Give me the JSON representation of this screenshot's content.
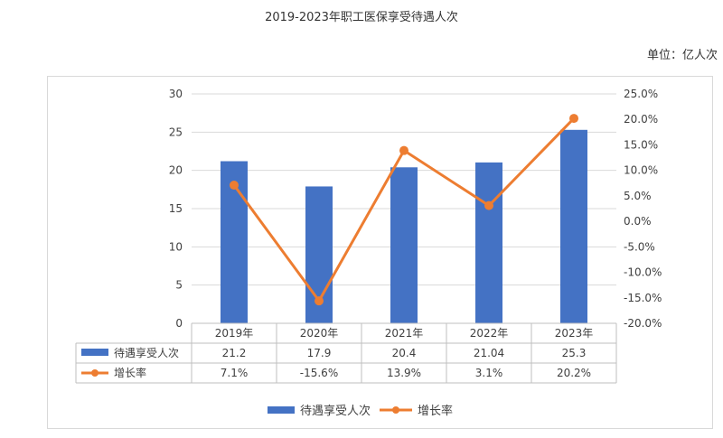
{
  "title": "2019-2023年职工医保享受待遇人次",
  "unit_label": "单位：亿人次",
  "chart_data": {
    "type": "bar",
    "title": "2019-2023年职工医保享受待遇人次",
    "categories": [
      "2019年",
      "2020年",
      "2021年",
      "2022年",
      "2023年"
    ],
    "series": [
      {
        "name": "待遇享受人次",
        "type": "bar",
        "axis": "left",
        "values": [
          21.2,
          17.9,
          20.4,
          21.04,
          25.3
        ],
        "labels": [
          "21.2",
          "17.9",
          "20.4",
          "21.04",
          "25.3"
        ],
        "color": "#4472c4"
      },
      {
        "name": "增长率",
        "type": "line",
        "axis": "right",
        "values": [
          7.1,
          -15.6,
          13.9,
          3.1,
          20.2
        ],
        "labels": [
          "7.1%",
          "-15.6%",
          "13.9%",
          "3.1%",
          "20.2%"
        ],
        "color": "#ed7d31"
      }
    ],
    "y_left": {
      "min": 0,
      "max": 30,
      "ticks": [
        "30",
        "25",
        "20",
        "15",
        "10",
        "5",
        "0"
      ]
    },
    "y_right": {
      "min": -20,
      "max": 25,
      "ticks": [
        "25.0%",
        "20.0%",
        "15.0%",
        "10.0%",
        "5.0%",
        "0.0%",
        "-5.0%",
        "-10.0%",
        "-15.0%",
        "-20.0%"
      ]
    },
    "grid": true,
    "data_table": true,
    "legend": "bottom"
  }
}
